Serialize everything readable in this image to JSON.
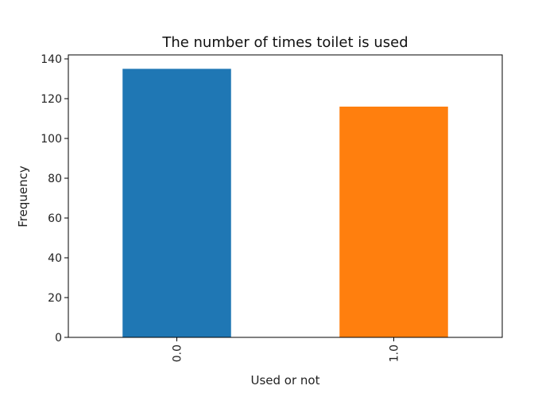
{
  "chart_data": {
    "type": "bar",
    "title": "The number of times toilet is used",
    "xlabel": "Used or not",
    "ylabel": "Frequency",
    "categories": [
      "0.0",
      "1.0"
    ],
    "values": [
      135,
      116
    ],
    "bar_colors": [
      "#1f77b4",
      "#ff7f0e"
    ],
    "ylim": [
      0,
      142
    ],
    "yticks": [
      0,
      20,
      40,
      60,
      80,
      100,
      120,
      140
    ],
    "ytick_labels": [
      "0",
      "20",
      "40",
      "60",
      "80",
      "100",
      "120",
      "140"
    ],
    "grid": false,
    "legend": "none"
  }
}
